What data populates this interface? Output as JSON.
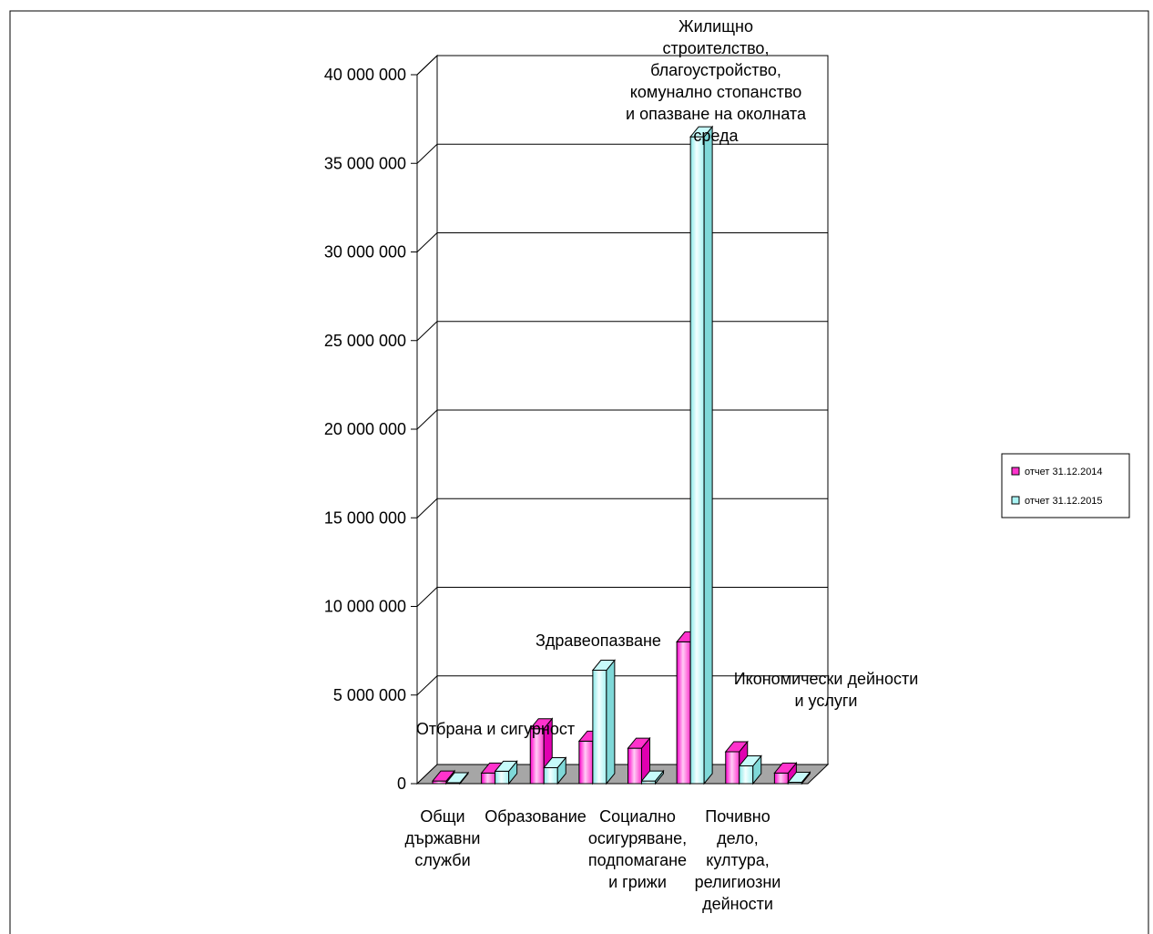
{
  "chart_data": {
    "type": "bar",
    "title": "",
    "xlabel": "",
    "ylabel": "",
    "ylim": [
      0,
      40000000
    ],
    "grid": true,
    "legend_position": "right",
    "y_ticks": [
      "0",
      "5 000 000",
      "10 000 000",
      "15 000 000",
      "20 000 000",
      "25 000 000",
      "30 000 000",
      "35 000 000",
      "40 000 000"
    ],
    "categories": [
      "Общи държавни служби",
      "Отбрана и сигурност",
      "Образование",
      "Здравеопазване",
      "Социално осигуряване, подпомагане и грижи",
      "Жилищно строителство, благоустройство, комунално стопанство и опазване на околната среда",
      "Почивно дело, култура, религиозни дейности",
      "Икономически дейности и услуги"
    ],
    "category_lines": [
      [
        "Общи",
        "държавни",
        "служби"
      ],
      [
        "Отбрана и сигурност"
      ],
      [
        "Образование"
      ],
      [
        "Здравеопазване"
      ],
      [
        "Социално",
        "осигуряване,",
        "подпомагане",
        "и грижи"
      ],
      [
        "Жилищно",
        "строителство,",
        "благоустройство,",
        "комунално стопанство",
        "и опазване на околната",
        "среда"
      ],
      [
        "Почивно",
        "дело,",
        "култура,",
        "религиозни",
        "дейности"
      ],
      [
        "Икономически дейности",
        "и услуги"
      ]
    ],
    "series": [
      {
        "name": "отчет 31.12.2014",
        "color": "#ff33cc",
        "values": [
          150000,
          600000,
          3100000,
          2400000,
          2000000,
          8000000,
          1800000,
          600000
        ]
      },
      {
        "name": "отчет 31.12.2015",
        "color": "#aaf5f5",
        "values": [
          50000,
          700000,
          900000,
          6400000,
          150000,
          36500000,
          1000000,
          80000
        ]
      }
    ]
  }
}
